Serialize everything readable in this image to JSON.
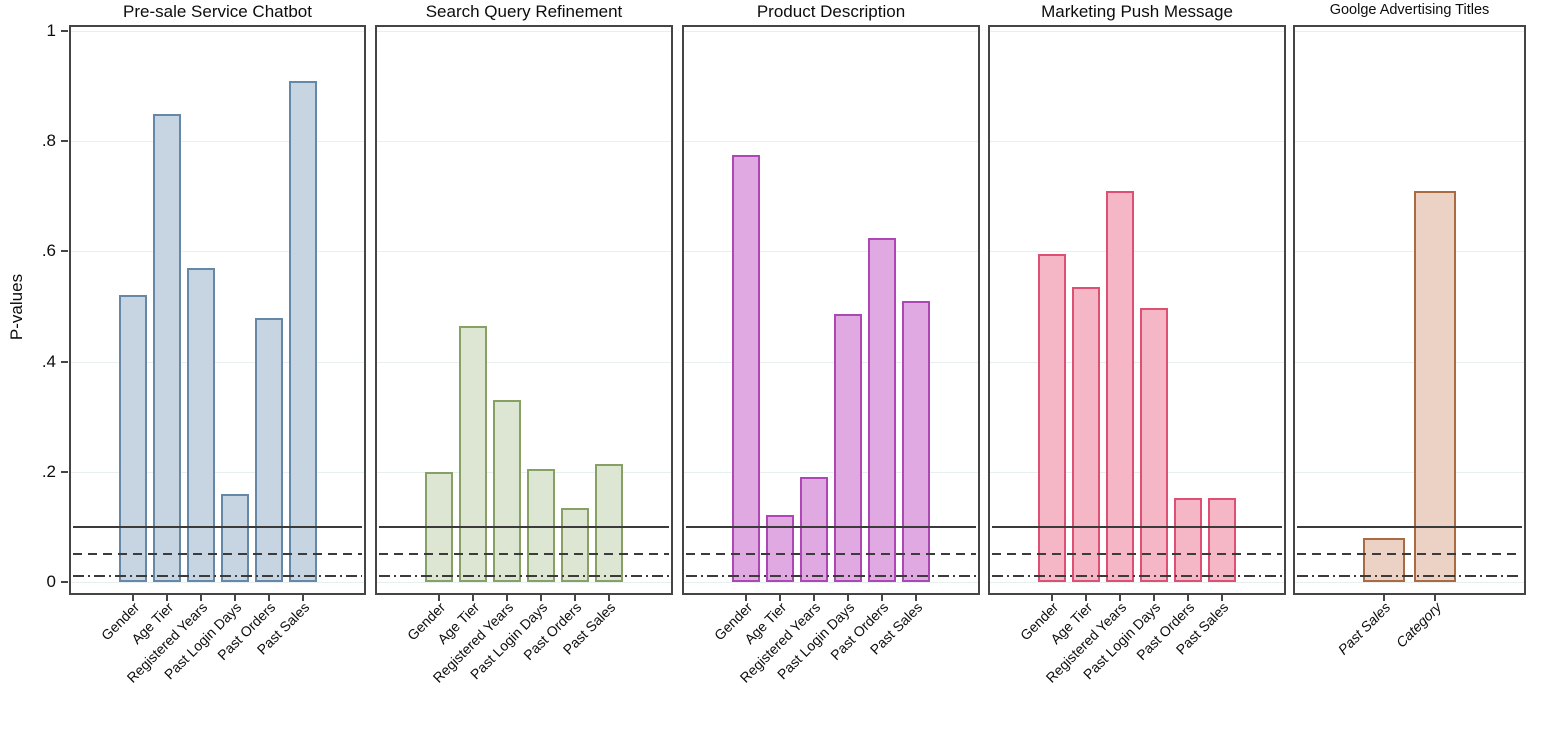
{
  "chart_data": {
    "type": "bar",
    "title": "",
    "ylabel": "P-values",
    "ylim": [
      0,
      1
    ],
    "yticks": [
      {
        "value": 0,
        "label": "0"
      },
      {
        "value": 0.2,
        "label": ".2"
      },
      {
        "value": 0.4,
        "label": ".4"
      },
      {
        "value": 0.6,
        "label": ".6"
      },
      {
        "value": 0.8,
        "label": ".8"
      },
      {
        "value": 1,
        "label": "1"
      }
    ],
    "grid": true,
    "reference_lines": [
      {
        "value": 0.1,
        "style": "solid"
      },
      {
        "value": 0.05,
        "style": "dashed"
      },
      {
        "value": 0.01,
        "style": "dashdot"
      }
    ],
    "panels": [
      {
        "title": "Pre-sale Service Chatbot",
        "fill": "#c7d4e2",
        "stroke": "#6688a8",
        "categories": [
          "Gender",
          "Age Tier",
          "Registered Years",
          "Past Login Days",
          "Past Orders",
          "Past Sales"
        ],
        "values": [
          0.52,
          0.85,
          0.57,
          0.16,
          0.48,
          0.91
        ],
        "label_style": "normal"
      },
      {
        "title": "Search Query Refinement",
        "fill": "#dde6d2",
        "stroke": "#87a164",
        "categories": [
          "Gender",
          "Age Tier",
          "Registered Years",
          "Past Login Days",
          "Past Orders",
          "Past Sales"
        ],
        "values": [
          0.2,
          0.465,
          0.33,
          0.205,
          0.135,
          0.215
        ],
        "label_style": "normal"
      },
      {
        "title": "Product Description",
        "fill": "#e0a9e2",
        "stroke": "#ae47b6",
        "categories": [
          "Gender",
          "Age Tier",
          "Registered Years",
          "Past Login Days",
          "Past Orders",
          "Past Sales"
        ],
        "values": [
          0.775,
          0.122,
          0.19,
          0.487,
          0.625,
          0.51
        ],
        "label_style": "normal"
      },
      {
        "title": "Marketing Push Message",
        "fill": "#f5b6c5",
        "stroke": "#dd5074",
        "categories": [
          "Gender",
          "Age Tier",
          "Registered Years",
          "Past Login Days",
          "Past Orders",
          "Past Sales"
        ],
        "values": [
          0.595,
          0.535,
          0.71,
          0.497,
          0.152,
          0.152
        ],
        "label_style": "normal"
      },
      {
        "title": "Goolge Advertising Titles",
        "fill": "#ecd2c4",
        "stroke": "#aa6a42",
        "categories": [
          "Past Sales",
          "Category"
        ],
        "values": [
          0.08,
          0.71
        ],
        "label_style": "italic"
      }
    ]
  }
}
